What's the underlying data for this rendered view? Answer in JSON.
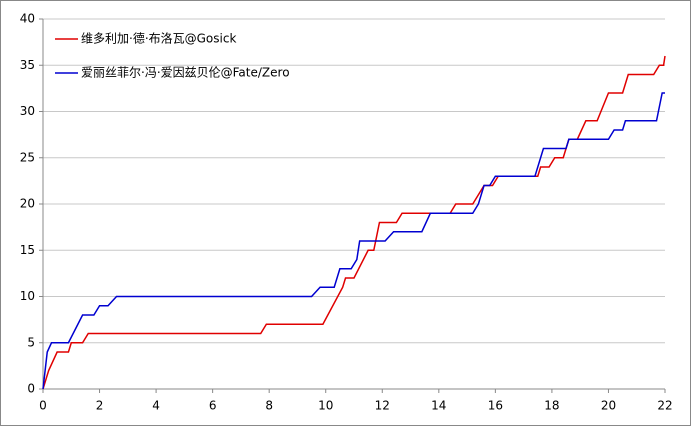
{
  "chart_data": {
    "type": "line",
    "series": [
      {
        "name": "维多利加·德·布洛瓦@Gosick",
        "color": "#e00000",
        "x": [
          0,
          0.2,
          0.5,
          0.9,
          1.0,
          1.4,
          1.6,
          7.7,
          7.9,
          9.9,
          10.6,
          10.7,
          11.0,
          11.5,
          11.7,
          11.9,
          12.5,
          12.7,
          14.4,
          14.6,
          15.2,
          15.4,
          15.6,
          15.9,
          16.1,
          17.5,
          17.6,
          17.9,
          18.1,
          18.4,
          18.6,
          18.9,
          19.2,
          19.6,
          20.0,
          20.5,
          20.7,
          21.6,
          21.8,
          21.95,
          22
        ],
        "values": [
          0,
          2,
          4,
          4,
          5,
          5,
          6,
          6,
          7,
          7,
          11,
          12,
          12,
          15,
          15,
          18,
          18,
          19,
          19,
          20,
          20,
          21,
          22,
          22,
          23,
          23,
          24,
          24,
          25,
          25,
          27,
          27,
          29,
          29,
          32,
          32,
          34,
          34,
          35,
          35,
          36
        ]
      },
      {
        "name": "爱丽丝菲尔·冯·爱因兹贝伦@Fate/Zero",
        "color": "#0000d0",
        "x": [
          0,
          0.15,
          0.3,
          0.9,
          1.4,
          1.8,
          2.0,
          2.3,
          2.6,
          9.5,
          9.8,
          10.3,
          10.5,
          10.9,
          11.1,
          11.2,
          12.1,
          12.4,
          13.4,
          13.7,
          15.2,
          15.4,
          15.6,
          15.8,
          16.0,
          17.4,
          17.7,
          18.5,
          18.6,
          20.0,
          20.2,
          20.5,
          20.6,
          21.7,
          21.9,
          22
        ],
        "values": [
          0,
          4,
          5,
          5,
          8,
          8,
          9,
          9,
          10,
          10,
          11,
          11,
          13,
          13,
          14,
          16,
          16,
          17,
          17,
          19,
          19,
          20,
          22,
          22,
          23,
          23,
          26,
          26,
          27,
          27,
          28,
          28,
          29,
          29,
          32,
          32
        ]
      }
    ],
    "xlim": [
      0,
      22
    ],
    "xticks": [
      0,
      2,
      4,
      6,
      8,
      10,
      12,
      14,
      16,
      18,
      20,
      22
    ],
    "ylim": [
      0,
      40
    ],
    "yticks": [
      0,
      5,
      10,
      15,
      20,
      25,
      30,
      35,
      40
    ],
    "grid": true,
    "legend": "upper left"
  }
}
